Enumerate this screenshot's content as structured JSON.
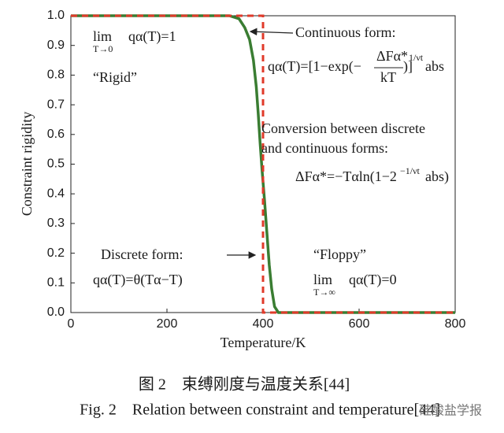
{
  "chart_data": {
    "type": "line",
    "xlabel": "Temperature/K",
    "ylabel": "Constraint rigidity",
    "xlim": [
      0,
      800
    ],
    "xticks": [
      0,
      200,
      400,
      600,
      800
    ],
    "ylim": [
      0,
      1
    ],
    "yticks": [
      {
        "value": 0,
        "label": "0.0"
      },
      0.1,
      0.2,
      0.3,
      0.4,
      0.5,
      0.6,
      0.7,
      0.8,
      0.9,
      {
        "value": 1,
        "label": "1.0"
      }
    ],
    "series": [
      {
        "color": "#3a7d32",
        "dash": false,
        "x": [
          0,
          330,
          350,
          362,
          372,
          380,
          386,
          390,
          394,
          398,
          403,
          408,
          413,
          418,
          424,
          432,
          800
        ],
        "values": [
          1,
          1,
          0.99,
          0.96,
          0.92,
          0.85,
          0.76,
          0.67,
          0.57,
          0.48,
          0.38,
          0.27,
          0.16,
          0.08,
          0.02,
          0,
          0
        ]
      },
      {
        "color": "#e03a2a",
        "dash": true,
        "x": [
          0,
          400,
          400,
          800
        ],
        "values": [
          1,
          1,
          0,
          0
        ]
      }
    ],
    "annotations": [
      "lim",
      "T→0",
      "qα(T)=1",
      "“Rigid”",
      "Continuous form:",
      "qα(T)=[1−exp(−",
      "ΔFα*",
      "kT",
      ")]",
      "1/νt",
      "abs",
      "Conversion between discrete",
      "and continuous forms:",
      "ΔFα*=−Tαln(1−2",
      "−1/νt",
      "abs)",
      "Discrete form:",
      "qα(T)=θ(Tα−T)",
      "“Floppy”",
      "lim",
      "T→∞",
      "qα(T)=0"
    ],
    "caption_cn": "图 2　束缚刚度与温度关系[44]",
    "caption_en": "Fig. 2　Relation between constraint and temperature[44]",
    "watermark": "硅酸盐学报"
  }
}
